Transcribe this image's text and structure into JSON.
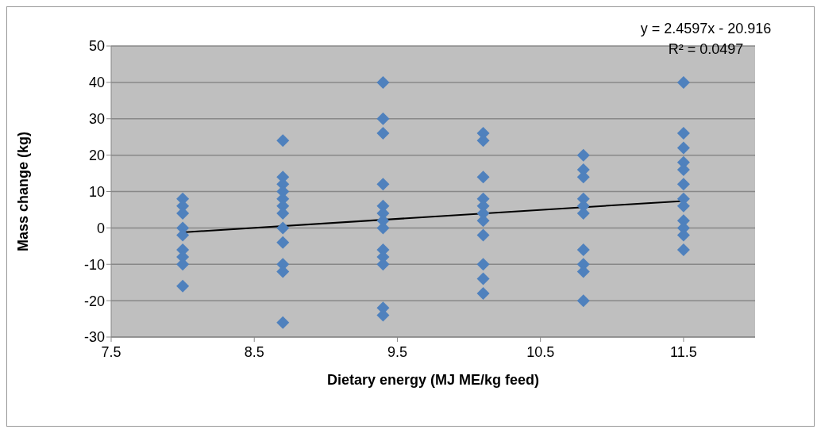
{
  "chart_data": {
    "type": "scatter",
    "xlabel": "Dietary energy (MJ ME/kg feed)",
    "ylabel": "Mass change (kg)",
    "xlim": [
      7.5,
      12
    ],
    "xticks": [
      7.5,
      8.5,
      9.5,
      10.5,
      11.5
    ],
    "ylim": [
      -30,
      50
    ],
    "yticks": [
      -30,
      -20,
      -10,
      0,
      10,
      20,
      30,
      40,
      50
    ],
    "grid": "y",
    "marker": "diamond",
    "series": [
      {
        "color": "#4f81bd",
        "x": [
          8,
          8,
          8,
          8,
          8,
          8,
          8,
          8,
          8,
          8.7,
          8.7,
          8.7,
          8.7,
          8.7,
          8.7,
          8.7,
          8.7,
          8.7,
          8.7,
          8.7,
          8.7,
          9.4,
          9.4,
          9.4,
          9.4,
          9.4,
          9.4,
          9.4,
          9.4,
          9.4,
          9.4,
          9.4,
          9.4,
          9.4,
          10.1,
          10.1,
          10.1,
          10.1,
          10.1,
          10.1,
          10.1,
          10.1,
          10.1,
          10.1,
          10.1,
          10.8,
          10.8,
          10.8,
          10.8,
          10.8,
          10.8,
          10.8,
          10.8,
          10.8,
          10.8,
          11.5,
          11.5,
          11.5,
          11.5,
          11.5,
          11.5,
          11.5,
          11.5,
          11.5,
          11.5,
          11.5,
          11.5
        ],
        "values": [
          8,
          6,
          4,
          0,
          -2,
          -6,
          -8,
          -10,
          -16,
          24,
          14,
          12,
          10,
          8,
          6,
          4,
          0,
          -4,
          -10,
          -12,
          -26,
          40,
          30,
          26,
          12,
          6,
          4,
          2,
          0,
          -6,
          -8,
          -10,
          -22,
          -24,
          26,
          24,
          14,
          8,
          6,
          4,
          2,
          -2,
          -10,
          -14,
          -18,
          20,
          16,
          14,
          8,
          6,
          4,
          -6,
          -10,
          -12,
          -20,
          40,
          26,
          22,
          18,
          16,
          12,
          8,
          6,
          2,
          0,
          -2,
          -6
        ]
      },
      {
        "type": "line",
        "color": "#000000",
        "marker": "none",
        "x": [
          8,
          11.5
        ],
        "values": [
          -1.2,
          7.4
        ]
      }
    ],
    "annotations": [
      "y = 2.4597x - 20.916",
      "R² = 0.0497"
    ]
  }
}
